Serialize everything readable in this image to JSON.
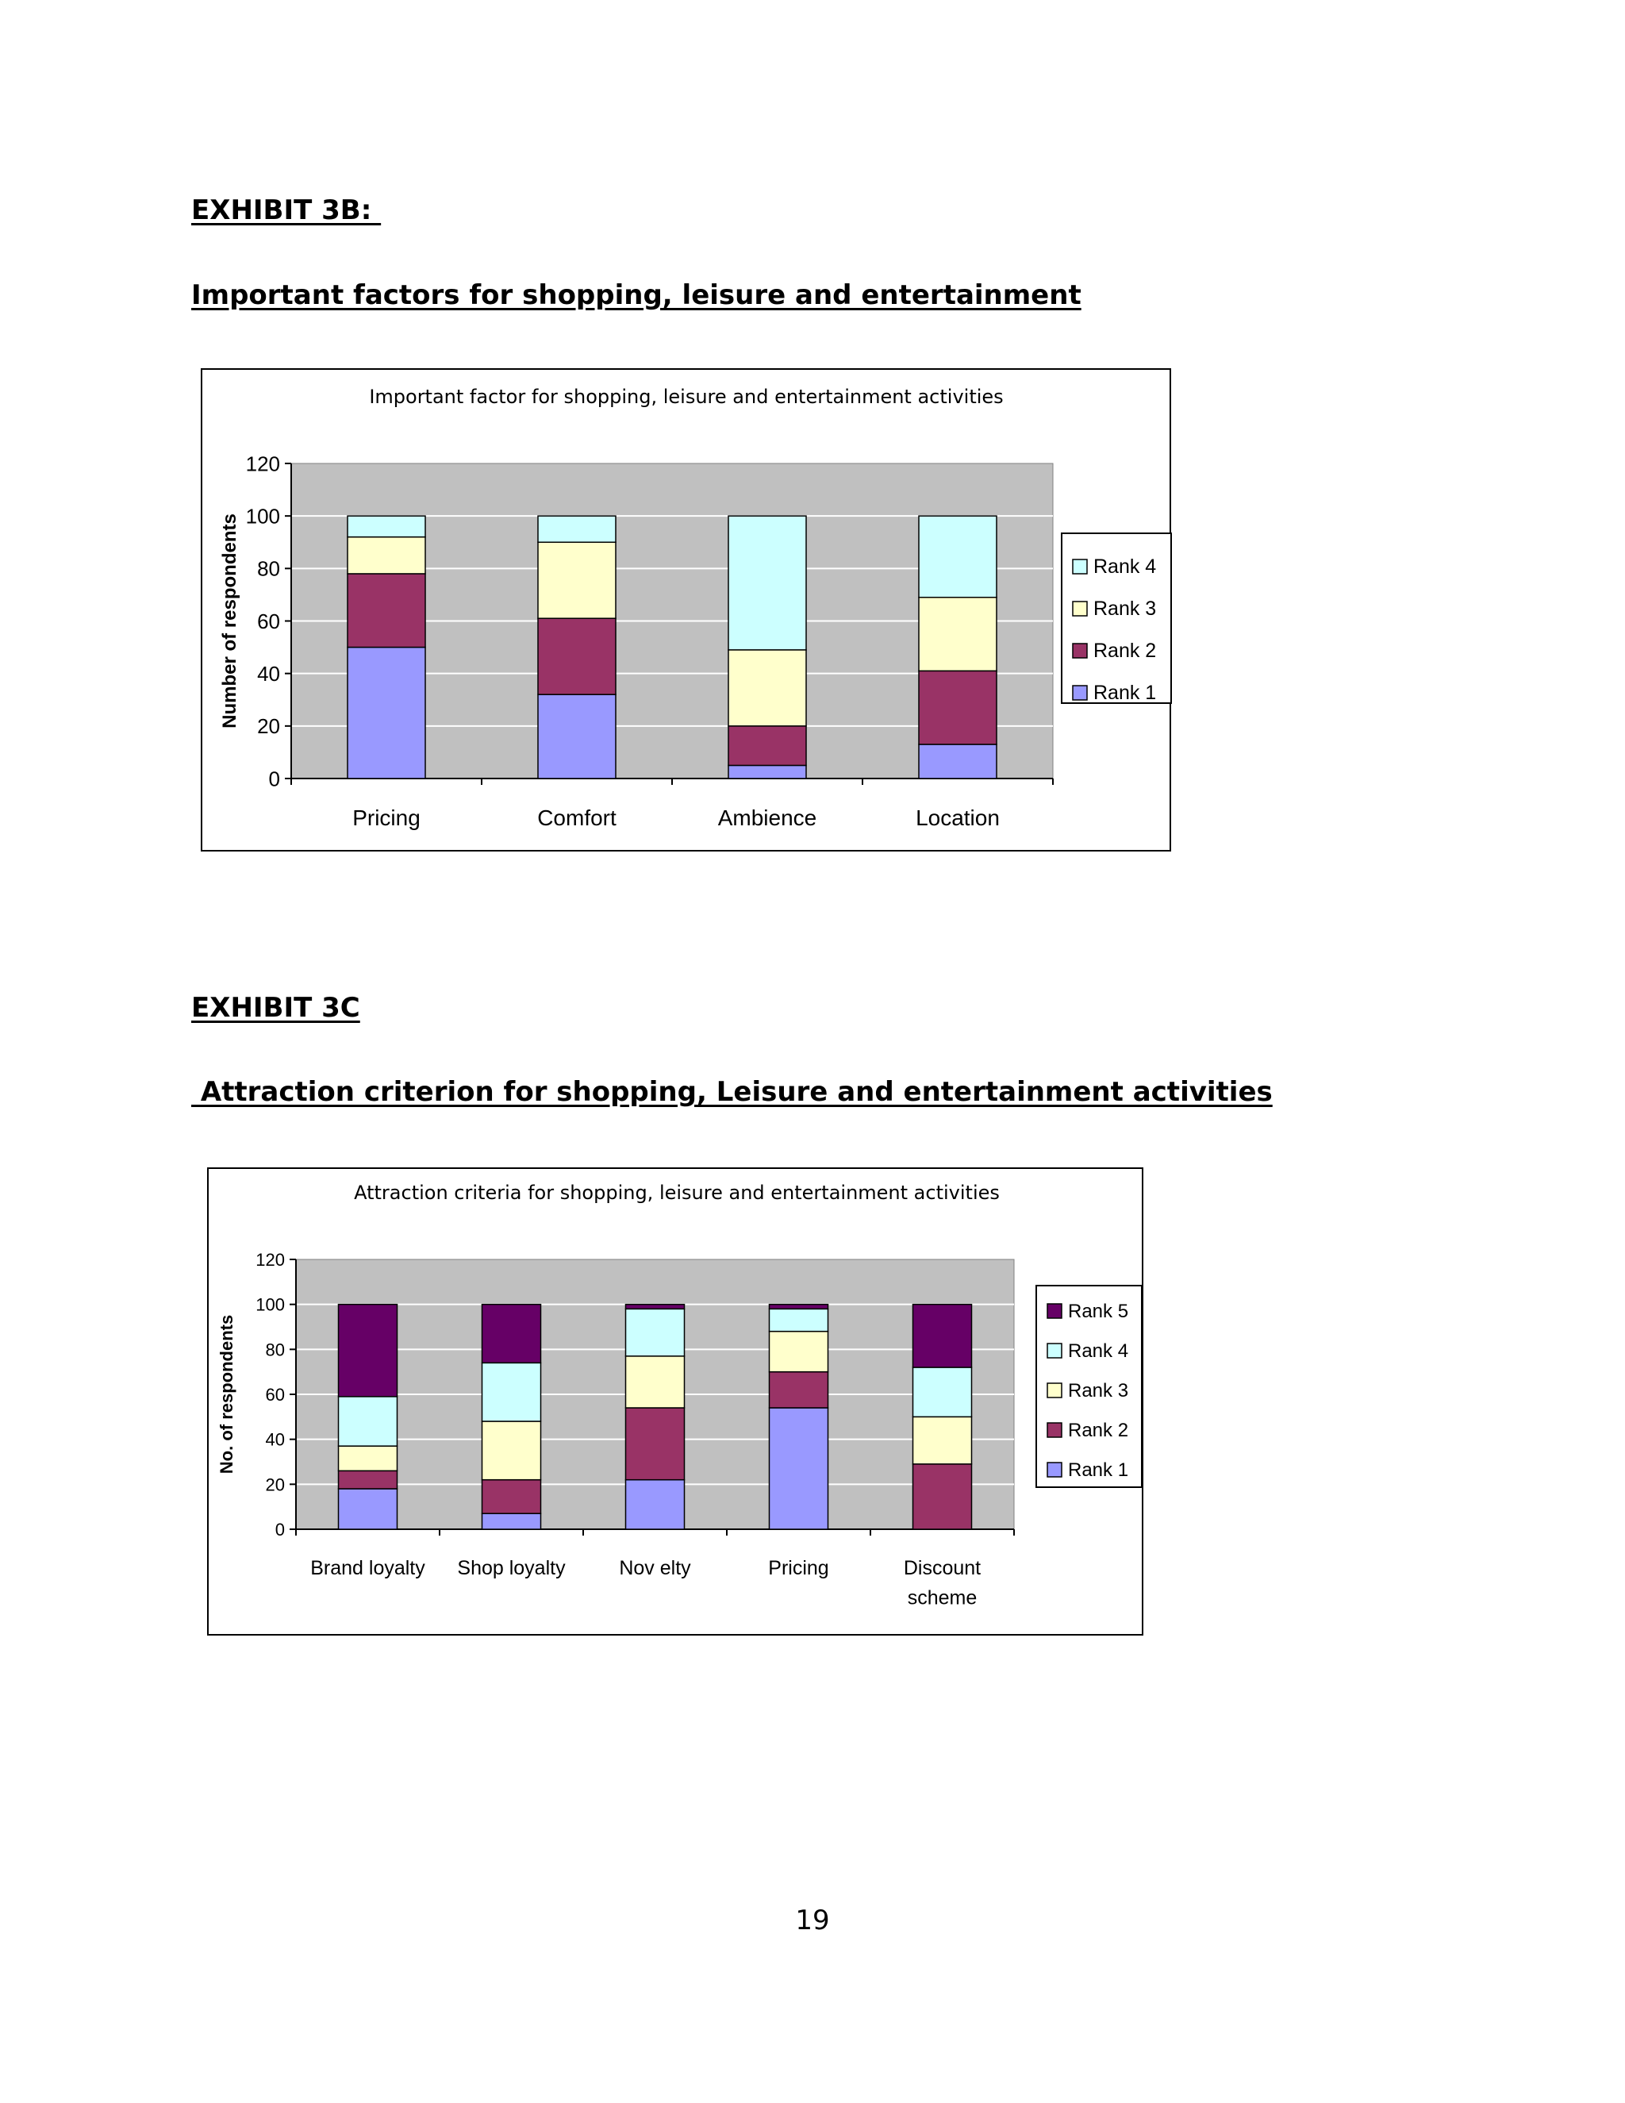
{
  "exhibit_3b": {
    "label": "EXHIBIT 3B: ",
    "heading": "Important factors for shopping, leisure and entertainment"
  },
  "exhibit_3c": {
    "label": "EXHIBIT 3C",
    "heading": " Attraction criterion for shopping, Leisure and entertainment activities"
  },
  "page_number": "19",
  "colors": {
    "rank1": "#9999ff",
    "rank2": "#993366",
    "rank3": "#ffffcc",
    "rank4": "#ccffff",
    "rank5": "#660066",
    "plot_background": "#c0c0c0",
    "gridline": "#ffffff"
  },
  "chart_data": [
    {
      "type": "bar",
      "stacked": true,
      "title": "Important factor for shopping, leisure and entertainment activities",
      "xlabel": "",
      "ylabel": "Number of respondents",
      "ylim": [
        0,
        120
      ],
      "yticks": [
        0,
        20,
        40,
        60,
        80,
        100,
        120
      ],
      "grid": true,
      "legend": "right",
      "categories": [
        "Pricing",
        "Comfort",
        "Ambience",
        "Location"
      ],
      "series": [
        {
          "name": "Rank 1",
          "values": [
            50,
            32,
            5,
            13
          ]
        },
        {
          "name": "Rank 2",
          "values": [
            28,
            29,
            15,
            28
          ]
        },
        {
          "name": "Rank 3",
          "values": [
            14,
            29,
            29,
            28
          ]
        },
        {
          "name": "Rank 4",
          "values": [
            8,
            10,
            51,
            31
          ]
        }
      ]
    },
    {
      "type": "bar",
      "stacked": true,
      "title": "Attraction criteria for shopping, leisure and entertainment activities",
      "xlabel": "",
      "ylabel": "No. of respondents",
      "ylim": [
        0,
        120
      ],
      "yticks": [
        0,
        20,
        40,
        60,
        80,
        100,
        120
      ],
      "grid": true,
      "legend": "right",
      "categories": [
        "Brand loyalty",
        "Shop loyalty",
        "Nov elty",
        "Pricing",
        "Discount scheme"
      ],
      "series": [
        {
          "name": "Rank 1",
          "values": [
            18,
            7,
            22,
            54,
            0
          ]
        },
        {
          "name": "Rank 2",
          "values": [
            8,
            15,
            32,
            16,
            29
          ]
        },
        {
          "name": "Rank 3",
          "values": [
            11,
            26,
            23,
            18,
            21
          ]
        },
        {
          "name": "Rank 4",
          "values": [
            22,
            26,
            21,
            10,
            22
          ]
        },
        {
          "name": "Rank 5",
          "values": [
            41,
            26,
            2,
            2,
            28
          ]
        }
      ]
    }
  ]
}
